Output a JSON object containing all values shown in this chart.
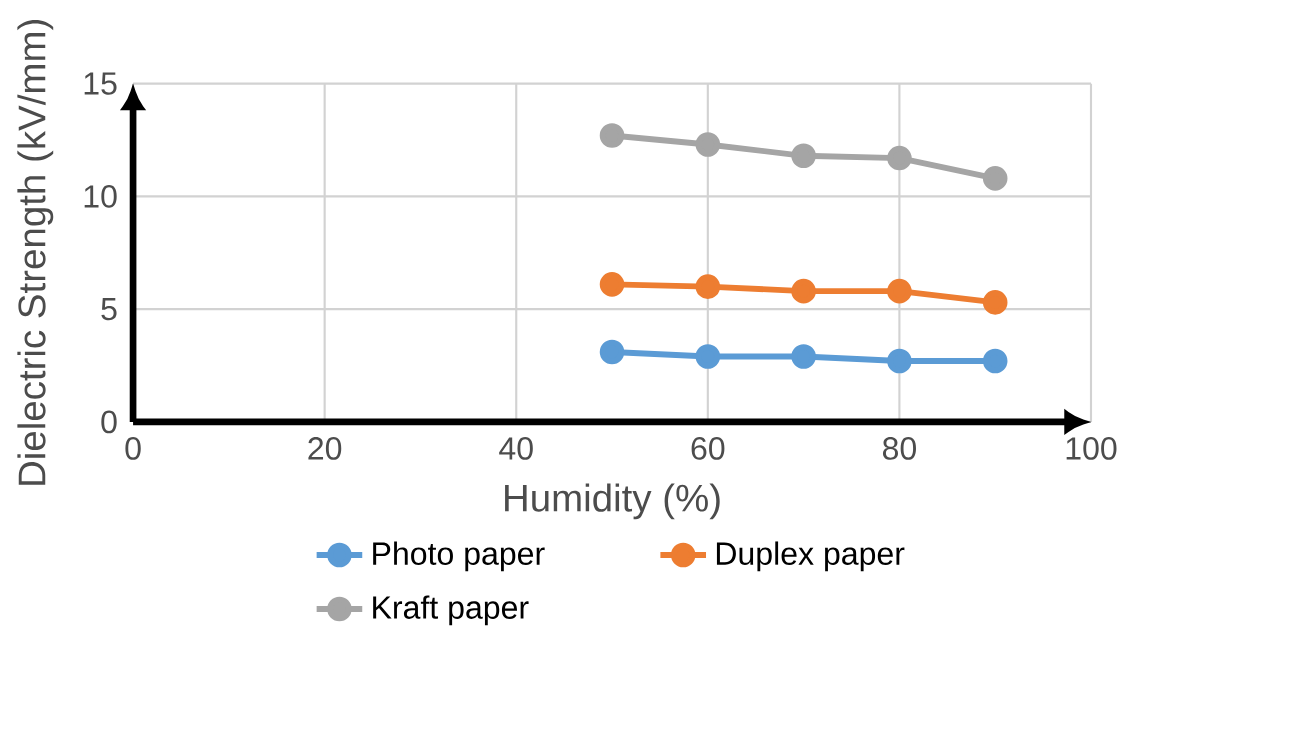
{
  "chart_data": {
    "type": "line",
    "xlabel": "Humidity (%)",
    "ylabel": "Dielectric Strength (kV/mm)",
    "x": [
      50,
      60,
      70,
      80,
      90
    ],
    "series": [
      {
        "name": "Photo paper",
        "color": "#5b9bd5",
        "values": [
          3.1,
          2.9,
          2.9,
          2.7,
          2.7
        ]
      },
      {
        "name": "Duplex paper",
        "color": "#ed7d31",
        "values": [
          6.1,
          6.0,
          5.8,
          5.8,
          5.3
        ]
      },
      {
        "name": "Kraft paper",
        "color": "#a5a5a5",
        "values": [
          12.7,
          12.3,
          11.8,
          11.7,
          10.8
        ]
      }
    ],
    "xlim": [
      0,
      100
    ],
    "xticks": [
      0,
      20,
      40,
      60,
      80,
      100
    ],
    "ylim": [
      0,
      15
    ],
    "yticks": [
      0,
      5,
      10,
      15
    ],
    "grid": true,
    "legend": "bottom",
    "marker": "circle",
    "line_style": "solid"
  }
}
